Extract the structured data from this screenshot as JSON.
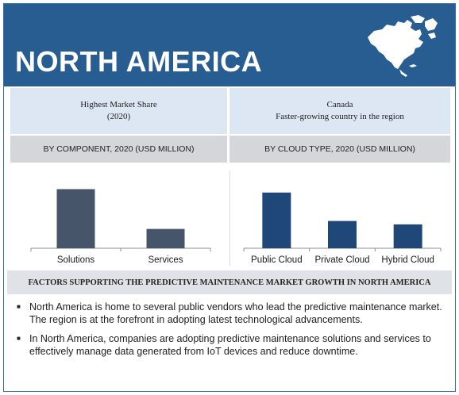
{
  "banner": {
    "title": "NORTH AMERICA"
  },
  "panels": {
    "left": {
      "head_line1": "Highest Market Share",
      "head_line2": "(2020)",
      "subtitle": "BY COMPONENT, 2020 (USD MILLION)"
    },
    "right": {
      "head_line1": "Canada",
      "head_line2": "Faster-growing country in the region",
      "subtitle": "BY CLOUD TYPE, 2020 (USD MILLION)"
    }
  },
  "chart_data": [
    {
      "type": "bar",
      "title": "BY COMPONENT, 2020 (USD MILLION)",
      "categories": [
        "Solutions",
        "Services"
      ],
      "values": [
        52,
        17
      ],
      "ylim": [
        0,
        60
      ],
      "grid": false,
      "colors": [
        "#46556a"
      ]
    },
    {
      "type": "bar",
      "title": "BY CLOUD TYPE, 2020 (USD MILLION)",
      "categories": [
        "Public Cloud",
        "Private Cloud",
        "Hybrid Cloud"
      ],
      "values": [
        49,
        24,
        21
      ],
      "ylim": [
        0,
        60
      ],
      "grid": false,
      "colors": [
        "#1f4878"
      ]
    }
  ],
  "factors": {
    "heading": "FACTORS SUPPORTING THE PREDICTIVE MAINTENANCE MARKET GROWTH  IN NORTH AMERICA",
    "bullets": [
      "North America is home to several public vendors who lead the predictive maintenance market. The region is at the forefront in adopting latest technological advancements.",
      "In North America, companies are adopting predictive maintenance solutions and services to effectively manage data generated from IoT devices and reduce downtime."
    ]
  },
  "icons": {
    "map": "north-america-map-icon"
  }
}
